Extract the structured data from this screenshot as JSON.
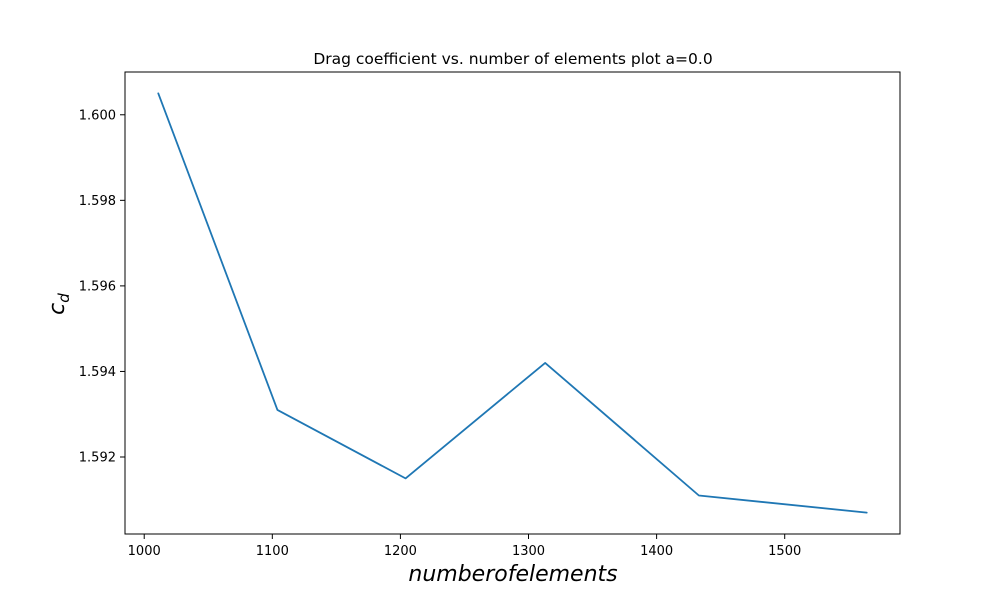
{
  "chart_data": {
    "type": "line",
    "title": "Drag coefficient vs. number of elements plot a=0.0",
    "xlabel": "numberofelements",
    "ylabel": {
      "main": "c",
      "sub": "d"
    },
    "xlim": [
      985,
      1590
    ],
    "ylim": [
      1.5902,
      1.601
    ],
    "xticks": [
      1000,
      1100,
      1200,
      1300,
      1400,
      1500
    ],
    "yticks": [
      1.592,
      1.594,
      1.596,
      1.598,
      1.6
    ],
    "ytick_labels": [
      "1.592",
      "1.594",
      "1.596",
      "1.598",
      "1.600"
    ],
    "grid": false,
    "series": [
      {
        "color": "#1f77b4",
        "x": [
          1011,
          1104,
          1204,
          1313,
          1433,
          1564
        ],
        "y": [
          1.6005,
          1.5931,
          1.5915,
          1.5942,
          1.5911,
          1.5907
        ]
      }
    ]
  }
}
